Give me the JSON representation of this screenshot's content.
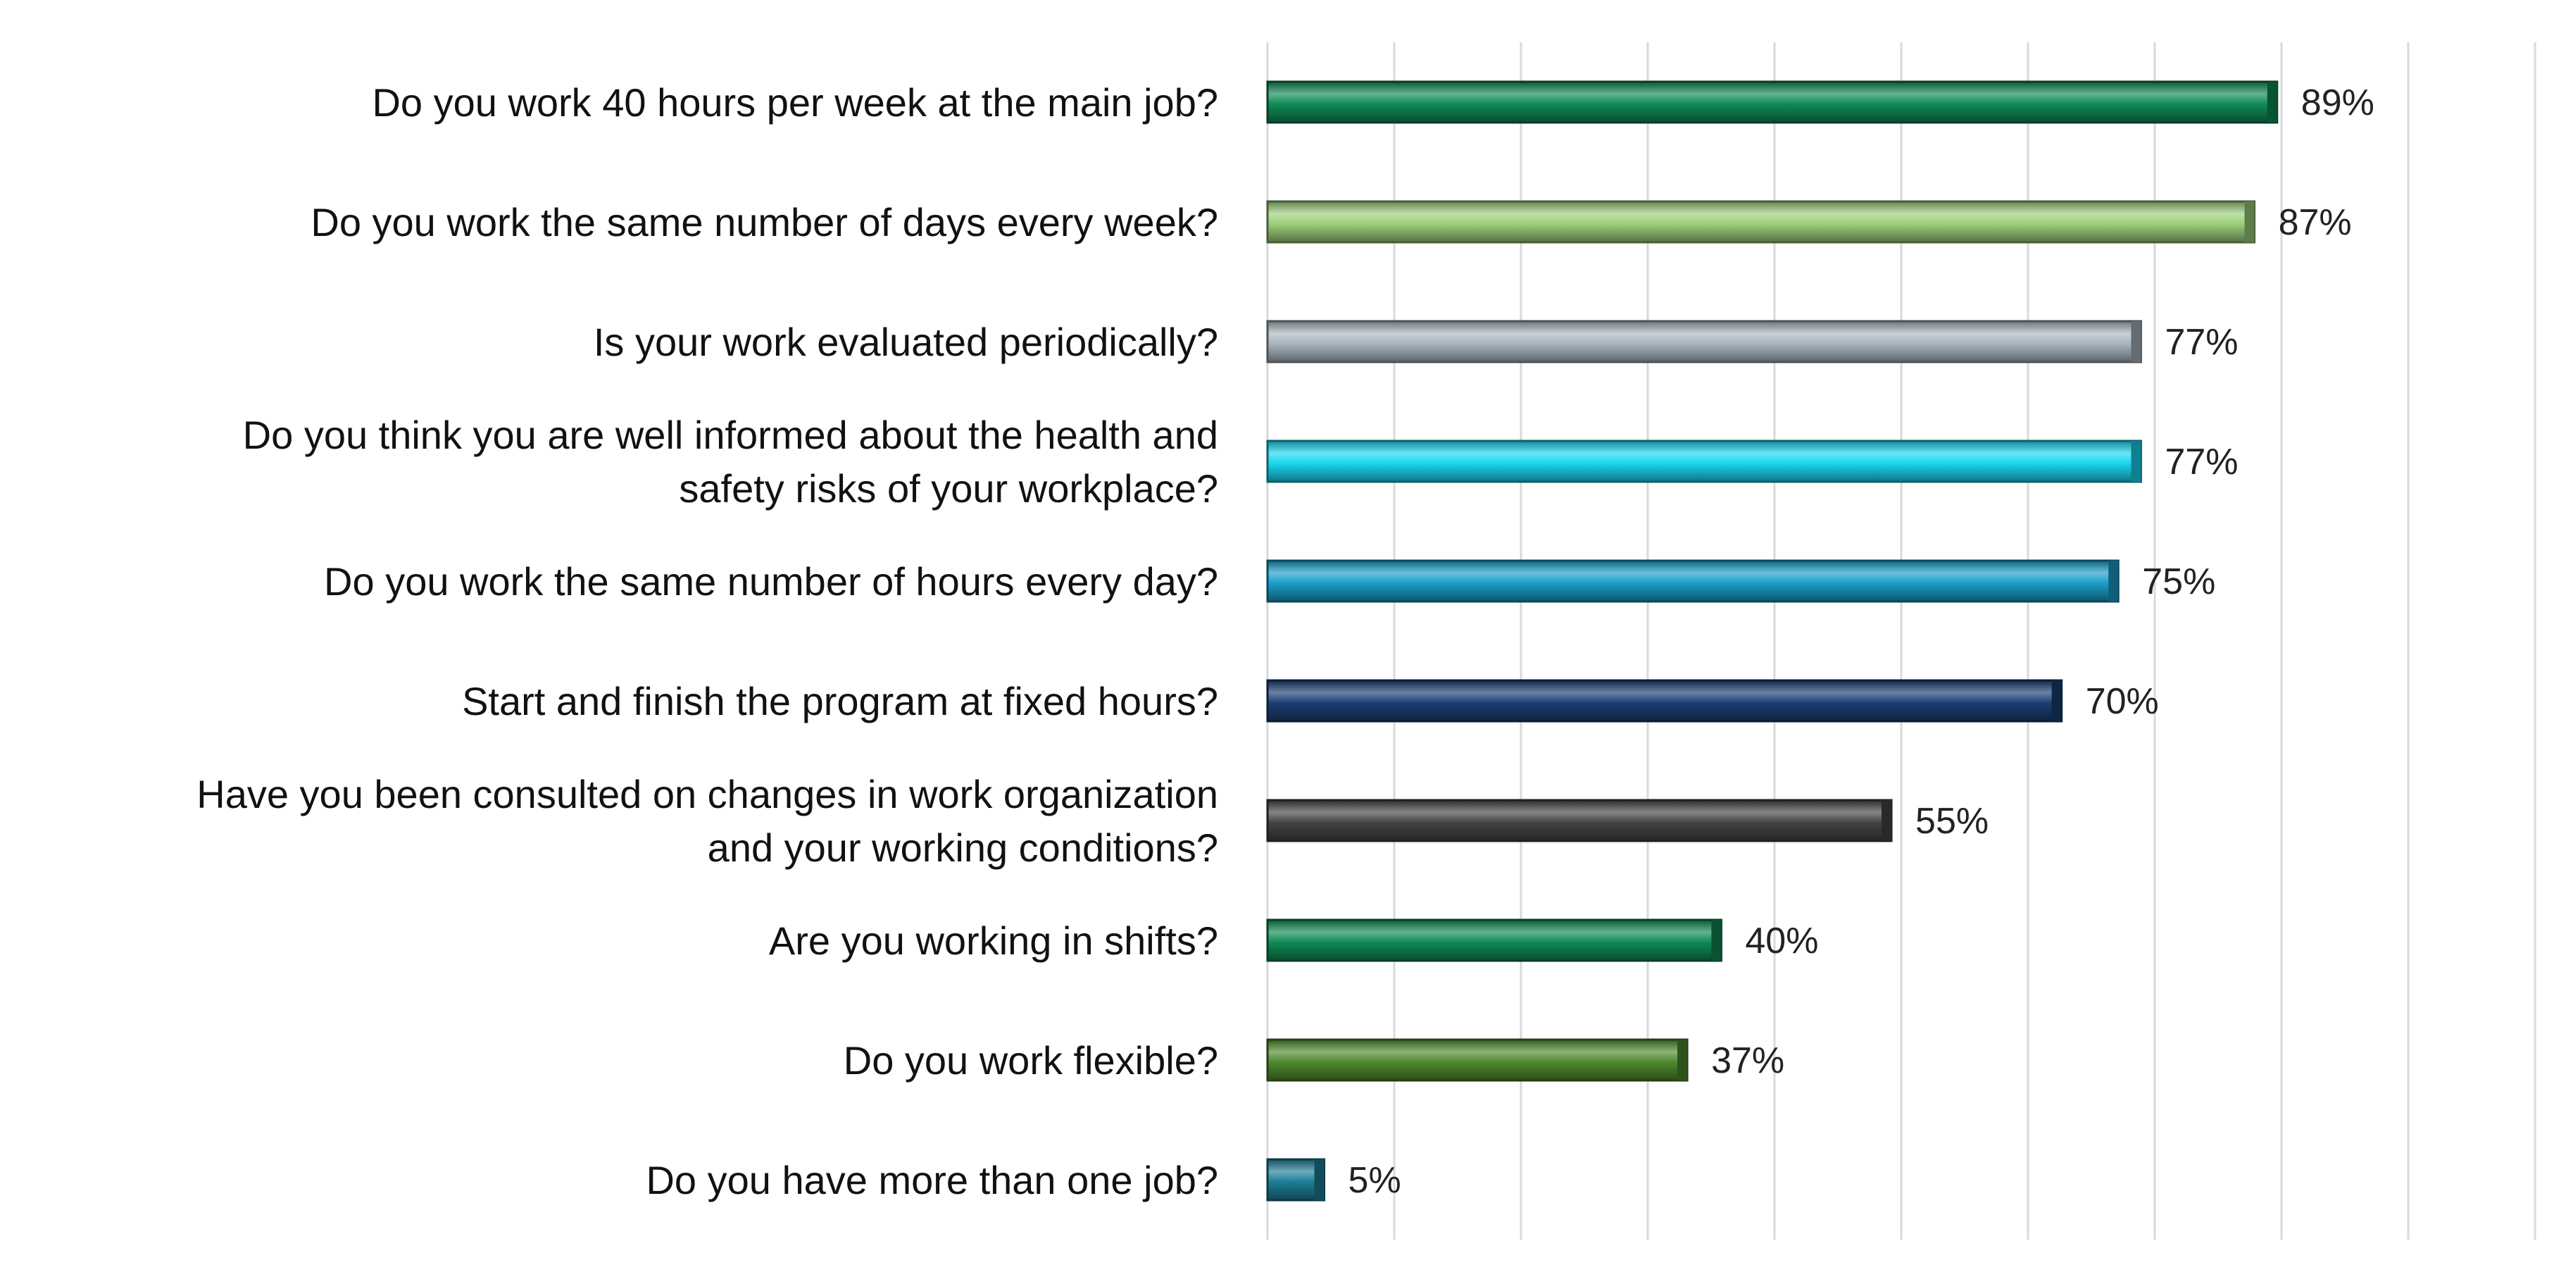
{
  "chart_data": {
    "type": "bar",
    "orientation": "horizontal",
    "categories": [
      [
        "Do you work 40 hours per week at the main job?"
      ],
      [
        "Do you work the same number of days every week?"
      ],
      [
        "Is your work evaluated periodically?"
      ],
      [
        "Do you think you are well informed about the health and",
        "safety risks of your workplace?"
      ],
      [
        "Do you work the same number of hours every day?"
      ],
      [
        "Start and finish the program at fixed hours?"
      ],
      [
        "Have you been consulted on changes in work organization",
        "and your working conditions?"
      ],
      [
        "Are you working in shifts?"
      ],
      [
        "Do you work flexible?"
      ],
      [
        "Do you have more than one job?"
      ]
    ],
    "values": [
      89,
      87,
      77,
      77,
      75,
      70,
      55,
      40,
      37,
      5
    ],
    "value_labels": [
      "89%",
      "87%",
      "77%",
      "77%",
      "75%",
      "70%",
      "55%",
      "40%",
      "37%",
      "5%"
    ],
    "colors": [
      "#0f8a55",
      "#9ccf7a",
      "#a9b6bf",
      "#19d6ee",
      "#1a9ec9",
      "#1a3f73",
      "#444444",
      "#0f8a55",
      "#4f8a2e",
      "#1e7e96"
    ],
    "xlim": [
      0,
      100
    ],
    "grid": true,
    "gridline_count": 10,
    "title": "",
    "xlabel": "",
    "ylabel": ""
  }
}
